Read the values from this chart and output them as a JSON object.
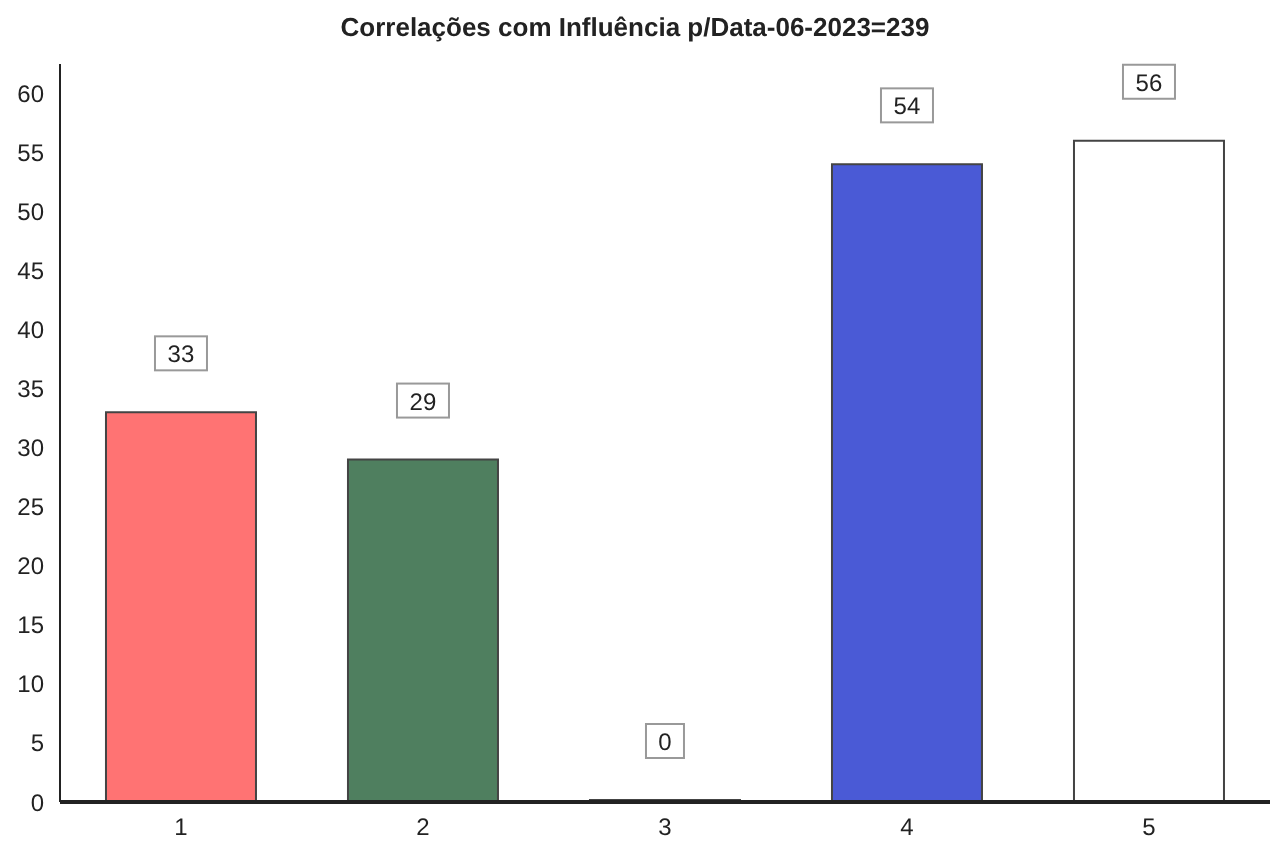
{
  "chart_data": {
    "type": "bar",
    "title": "Correlações com Influência p/Data-06-2023=239",
    "categories": [
      "1",
      "2",
      "3",
      "4",
      "5"
    ],
    "values": [
      33,
      29,
      0,
      54,
      56
    ],
    "colors": [
      "#ff7373",
      "#4f7f5f",
      "#ffffff",
      "#4a5ad6",
      "#ffffff"
    ],
    "ylim": [
      0,
      62.5
    ],
    "yticks": [
      0,
      5,
      10,
      15,
      20,
      25,
      30,
      35,
      40,
      45,
      50,
      55,
      60
    ],
    "data_labels": true
  }
}
